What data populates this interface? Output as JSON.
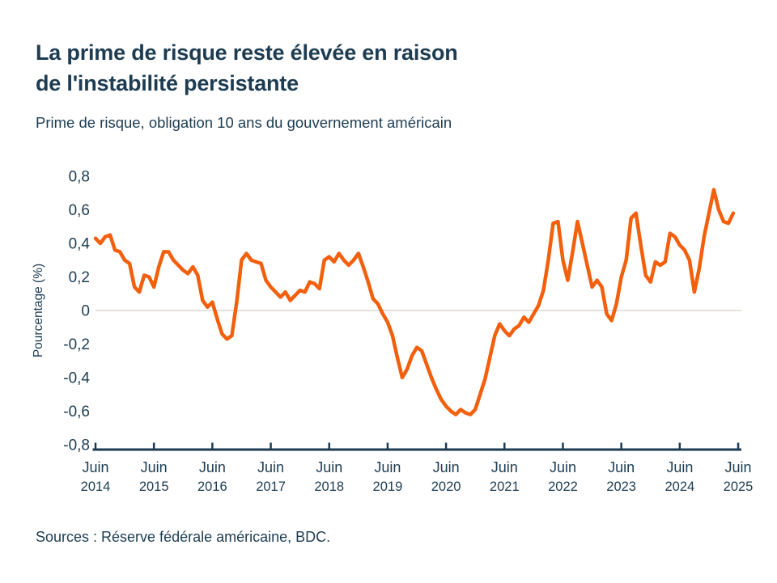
{
  "header": {
    "title_lines": [
      "La prime de risque reste élevée en raison",
      "de l'instabilité persistante"
    ],
    "subtitle": "Prime de risque, obligation 10 ans du gouvernement américain"
  },
  "footer": {
    "sources": "Sources : Réserve fédérale américaine, BDC."
  },
  "colors": {
    "accent_orange": "#F2600D",
    "text_navy": "#1D3C52",
    "zero_line_gray": "#E5E2DB",
    "background": "#FFFFFF"
  },
  "chart_data": {
    "type": "line",
    "title": "La prime de risque reste élevée en raison de l'instabilité persistante",
    "subtitle": "Prime de risque, obligation 10 ans du gouvernement américain",
    "xlabel": "",
    "ylabel": "Pourcentage (%)",
    "ylim": [
      -0.8,
      0.8
    ],
    "grid": "zero-line-only",
    "legend_position": "none",
    "y_ticks": [
      {
        "label": "0,8",
        "value": 0.8
      },
      {
        "label": "0,6",
        "value": 0.6
      },
      {
        "label": "0,4",
        "value": 0.4
      },
      {
        "label": "0,2",
        "value": 0.2
      },
      {
        "label": "0",
        "value": 0.0
      },
      {
        "label": "-0,2",
        "value": -0.2
      },
      {
        "label": "-0,4",
        "value": -0.4
      },
      {
        "label": "-0,6",
        "value": -0.6
      },
      {
        "label": "-0,8",
        "value": -0.8
      }
    ],
    "x_ticks": [
      {
        "month": "Juin",
        "year": "2014"
      },
      {
        "month": "Juin",
        "year": "2015"
      },
      {
        "month": "Juin",
        "year": "2016"
      },
      {
        "month": "Juin",
        "year": "2017"
      },
      {
        "month": "Juin",
        "year": "2018"
      },
      {
        "month": "Juin",
        "year": "2019"
      },
      {
        "month": "Juin",
        "year": "2020"
      },
      {
        "month": "Juin",
        "year": "2021"
      },
      {
        "month": "Juin",
        "year": "2022"
      },
      {
        "month": "Juin",
        "year": "2023"
      },
      {
        "month": "Juin",
        "year": "2024"
      },
      {
        "month": "Juin",
        "year": "2025"
      }
    ],
    "series": [
      {
        "name": "Prime de risque, obligation 10 ans du gouvernement américain",
        "color": "#F2600D",
        "frequency": "monthly",
        "start": "Juin 2014",
        "values": [
          0.43,
          0.4,
          0.44,
          0.45,
          0.36,
          0.35,
          0.3,
          0.28,
          0.14,
          0.11,
          0.21,
          0.2,
          0.14,
          0.26,
          0.35,
          0.35,
          0.3,
          0.27,
          0.24,
          0.22,
          0.26,
          0.21,
          0.06,
          0.02,
          0.05,
          -0.05,
          -0.14,
          -0.17,
          -0.15,
          0.05,
          0.3,
          0.34,
          0.3,
          0.29,
          0.28,
          0.18,
          0.14,
          0.11,
          0.08,
          0.11,
          0.06,
          0.09,
          0.12,
          0.11,
          0.17,
          0.16,
          0.13,
          0.3,
          0.32,
          0.29,
          0.34,
          0.3,
          0.27,
          0.3,
          0.34,
          0.26,
          0.17,
          0.07,
          0.04,
          -0.02,
          -0.07,
          -0.15,
          -0.28,
          -0.4,
          -0.35,
          -0.27,
          -0.22,
          -0.24,
          -0.32,
          -0.4,
          -0.47,
          -0.53,
          -0.57,
          -0.6,
          -0.62,
          -0.59,
          -0.61,
          -0.62,
          -0.59,
          -0.5,
          -0.41,
          -0.28,
          -0.15,
          -0.08,
          -0.12,
          -0.15,
          -0.11,
          -0.09,
          -0.04,
          -0.07,
          -0.02,
          0.03,
          0.12,
          0.3,
          0.52,
          0.53,
          0.3,
          0.18,
          0.35,
          0.53,
          0.4,
          0.27,
          0.14,
          0.18,
          0.14,
          -0.02,
          -0.06,
          0.04,
          0.2,
          0.3,
          0.55,
          0.58,
          0.39,
          0.21,
          0.17,
          0.29,
          0.27,
          0.29,
          0.46,
          0.44,
          0.39,
          0.36,
          0.3,
          0.11,
          0.25,
          0.44,
          0.58,
          0.72,
          0.6,
          0.53,
          0.52,
          0.58
        ]
      }
    ]
  }
}
